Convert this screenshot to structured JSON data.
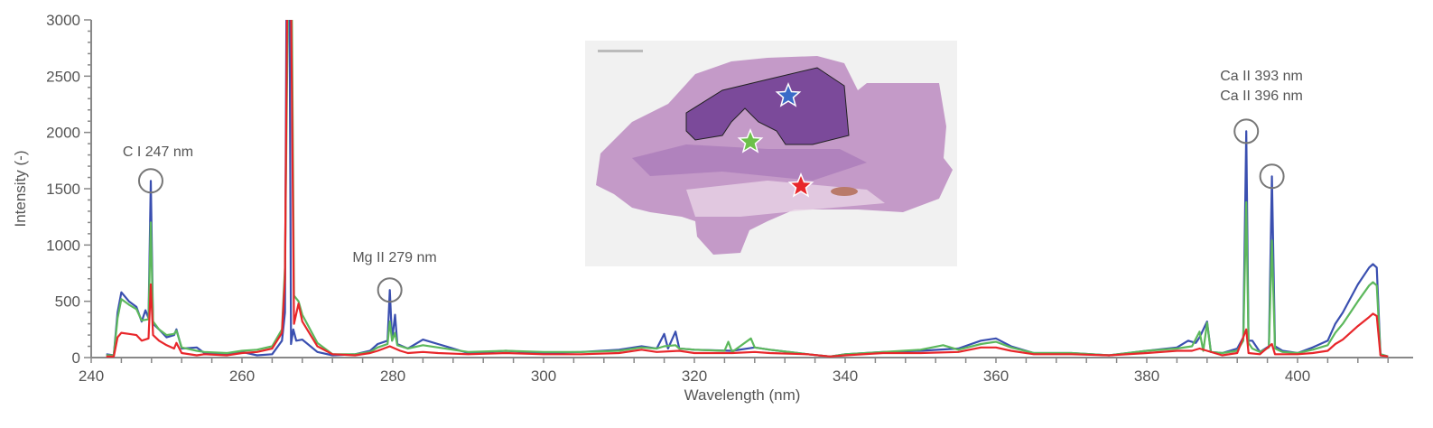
{
  "chart_data": {
    "type": "line",
    "title": "",
    "xlabel": "Wavelength (nm)",
    "ylabel": "Intensity (-)",
    "xlim": [
      240,
      415
    ],
    "ylim": [
      0,
      3000
    ],
    "x_ticks": [
      240,
      260,
      280,
      300,
      320,
      340,
      360,
      380,
      400
    ],
    "x_tick_labels": [
      "240",
      "260",
      "280",
      "300",
      "320",
      "340",
      "360",
      "380",
      "400"
    ],
    "y_ticks": [
      0,
      500,
      1000,
      1500,
      2000,
      2500,
      3000
    ],
    "y_tick_labels": [
      "0",
      "500",
      "1000",
      "1500",
      "2000",
      "2500",
      "3000"
    ],
    "grid": false,
    "legend": "none",
    "series": [
      {
        "color": "#3a4fb0",
        "points": [
          [
            242,
            30
          ],
          [
            243,
            20
          ],
          [
            243.5,
            400
          ],
          [
            244,
            580
          ],
          [
            245,
            500
          ],
          [
            246,
            450
          ],
          [
            246.7,
            320
          ],
          [
            247.2,
            420
          ],
          [
            247.6,
            350
          ],
          [
            247.9,
            1570
          ],
          [
            248.2,
            300
          ],
          [
            249,
            250
          ],
          [
            250,
            180
          ],
          [
            251,
            200
          ],
          [
            251.3,
            250
          ],
          [
            252,
            80
          ],
          [
            254,
            90
          ],
          [
            255,
            40
          ],
          [
            258,
            30
          ],
          [
            260,
            50
          ],
          [
            262,
            20
          ],
          [
            264,
            30
          ],
          [
            265.3,
            150
          ],
          [
            265.7,
            400
          ],
          [
            265.9,
            3200
          ],
          [
            266.3,
            3200
          ],
          [
            266.5,
            120
          ],
          [
            266.8,
            250
          ],
          [
            267.2,
            150
          ],
          [
            268,
            160
          ],
          [
            270,
            50
          ],
          [
            272,
            20
          ],
          [
            275,
            30
          ],
          [
            277,
            60
          ],
          [
            278,
            120
          ],
          [
            279.3,
            150
          ],
          [
            279.6,
            600
          ],
          [
            279.9,
            150
          ],
          [
            280.3,
            380
          ],
          [
            280.6,
            120
          ],
          [
            282,
            80
          ],
          [
            284,
            160
          ],
          [
            286,
            120
          ],
          [
            290,
            40
          ],
          [
            295,
            60
          ],
          [
            300,
            40
          ],
          [
            305,
            50
          ],
          [
            310,
            70
          ],
          [
            313,
            100
          ],
          [
            315,
            80
          ],
          [
            316,
            210
          ],
          [
            316.5,
            80
          ],
          [
            317.5,
            230
          ],
          [
            318,
            80
          ],
          [
            320,
            70
          ],
          [
            325,
            60
          ],
          [
            328,
            90
          ],
          [
            330,
            70
          ],
          [
            335,
            30
          ],
          [
            338,
            10
          ],
          [
            340,
            30
          ],
          [
            345,
            50
          ],
          [
            350,
            60
          ],
          [
            355,
            80
          ],
          [
            358,
            150
          ],
          [
            360,
            170
          ],
          [
            362,
            100
          ],
          [
            365,
            40
          ],
          [
            370,
            40
          ],
          [
            375,
            20
          ],
          [
            380,
            60
          ],
          [
            384,
            90
          ],
          [
            385.5,
            150
          ],
          [
            386.5,
            130
          ],
          [
            387,
            180
          ],
          [
            388,
            320
          ],
          [
            388.5,
            50
          ],
          [
            390,
            40
          ],
          [
            392,
            80
          ],
          [
            392.8,
            180
          ],
          [
            393.2,
            2010
          ],
          [
            393.5,
            150
          ],
          [
            394,
            150
          ],
          [
            395,
            50
          ],
          [
            396.2,
            100
          ],
          [
            396.6,
            1610
          ],
          [
            397,
            100
          ],
          [
            398,
            60
          ],
          [
            400,
            40
          ],
          [
            402,
            90
          ],
          [
            404,
            150
          ],
          [
            405,
            300
          ],
          [
            406,
            400
          ],
          [
            408,
            650
          ],
          [
            409.5,
            800
          ],
          [
            410,
            830
          ],
          [
            410.5,
            800
          ],
          [
            411,
            30
          ],
          [
            412,
            10
          ]
        ]
      },
      {
        "color": "#5cb85c",
        "points": [
          [
            242,
            20
          ],
          [
            243,
            20
          ],
          [
            243.5,
            350
          ],
          [
            244,
            520
          ],
          [
            245,
            470
          ],
          [
            246,
            430
          ],
          [
            246.7,
            330
          ],
          [
            247.6,
            340
          ],
          [
            247.9,
            1200
          ],
          [
            248.2,
            320
          ],
          [
            249,
            250
          ],
          [
            250,
            200
          ],
          [
            251,
            210
          ],
          [
            251.3,
            240
          ],
          [
            252,
            90
          ],
          [
            254,
            60
          ],
          [
            255,
            50
          ],
          [
            258,
            40
          ],
          [
            260,
            60
          ],
          [
            262,
            70
          ],
          [
            264,
            100
          ],
          [
            265.3,
            250
          ],
          [
            265.7,
            800
          ],
          [
            266.1,
            3200
          ],
          [
            266.6,
            3200
          ],
          [
            266.9,
            550
          ],
          [
            267.5,
            500
          ],
          [
            268,
            380
          ],
          [
            270,
            130
          ],
          [
            272,
            30
          ],
          [
            275,
            30
          ],
          [
            277,
            50
          ],
          [
            278,
            90
          ],
          [
            279.3,
            120
          ],
          [
            279.6,
            320
          ],
          [
            279.9,
            150
          ],
          [
            280.3,
            220
          ],
          [
            280.6,
            110
          ],
          [
            282,
            80
          ],
          [
            284,
            110
          ],
          [
            286,
            90
          ],
          [
            290,
            50
          ],
          [
            295,
            60
          ],
          [
            300,
            50
          ],
          [
            305,
            50
          ],
          [
            310,
            60
          ],
          [
            313,
            90
          ],
          [
            315,
            80
          ],
          [
            316,
            100
          ],
          [
            317.5,
            110
          ],
          [
            318,
            80
          ],
          [
            320,
            70
          ],
          [
            324,
            60
          ],
          [
            324.5,
            140
          ],
          [
            325,
            50
          ],
          [
            327.5,
            170
          ],
          [
            328,
            90
          ],
          [
            330,
            70
          ],
          [
            335,
            30
          ],
          [
            338,
            10
          ],
          [
            340,
            30
          ],
          [
            345,
            50
          ],
          [
            350,
            70
          ],
          [
            353,
            110
          ],
          [
            355,
            70
          ],
          [
            358,
            120
          ],
          [
            360,
            140
          ],
          [
            362,
            90
          ],
          [
            365,
            40
          ],
          [
            370,
            40
          ],
          [
            375,
            20
          ],
          [
            380,
            60
          ],
          [
            384,
            80
          ],
          [
            386,
            100
          ],
          [
            387,
            230
          ],
          [
            387.5,
            60
          ],
          [
            388,
            310
          ],
          [
            388.5,
            50
          ],
          [
            390,
            40
          ],
          [
            392,
            60
          ],
          [
            392.8,
            150
          ],
          [
            393.2,
            1380
          ],
          [
            393.5,
            130
          ],
          [
            394,
            80
          ],
          [
            395,
            50
          ],
          [
            396.2,
            90
          ],
          [
            396.6,
            1040
          ],
          [
            397,
            80
          ],
          [
            398,
            50
          ],
          [
            400,
            40
          ],
          [
            402,
            70
          ],
          [
            404,
            110
          ],
          [
            405,
            220
          ],
          [
            406,
            300
          ],
          [
            408,
            500
          ],
          [
            409.5,
            640
          ],
          [
            410,
            670
          ],
          [
            410.5,
            640
          ],
          [
            411,
            30
          ],
          [
            412,
            10
          ]
        ]
      },
      {
        "color": "#e8262a",
        "points": [
          [
            242,
            10
          ],
          [
            243,
            10
          ],
          [
            243.5,
            180
          ],
          [
            244,
            220
          ],
          [
            245,
            210
          ],
          [
            246,
            200
          ],
          [
            246.7,
            150
          ],
          [
            247.6,
            170
          ],
          [
            247.9,
            650
          ],
          [
            248.2,
            200
          ],
          [
            249,
            150
          ],
          [
            250,
            110
          ],
          [
            251,
            80
          ],
          [
            251.3,
            130
          ],
          [
            252,
            40
          ],
          [
            254,
            20
          ],
          [
            255,
            30
          ],
          [
            258,
            20
          ],
          [
            260,
            40
          ],
          [
            262,
            50
          ],
          [
            264,
            80
          ],
          [
            265.3,
            220
          ],
          [
            265.7,
            700
          ],
          [
            266.0,
            3200
          ],
          [
            266.5,
            3200
          ],
          [
            266.9,
            300
          ],
          [
            267.5,
            480
          ],
          [
            268,
            320
          ],
          [
            270,
            100
          ],
          [
            272,
            30
          ],
          [
            275,
            20
          ],
          [
            277,
            40
          ],
          [
            278,
            60
          ],
          [
            279.6,
            100
          ],
          [
            281,
            60
          ],
          [
            282,
            40
          ],
          [
            284,
            50
          ],
          [
            286,
            40
          ],
          [
            290,
            30
          ],
          [
            295,
            40
          ],
          [
            300,
            30
          ],
          [
            305,
            30
          ],
          [
            310,
            40
          ],
          [
            313,
            70
          ],
          [
            315,
            50
          ],
          [
            318,
            60
          ],
          [
            320,
            40
          ],
          [
            325,
            40
          ],
          [
            328,
            50
          ],
          [
            330,
            40
          ],
          [
            335,
            30
          ],
          [
            338,
            10
          ],
          [
            340,
            20
          ],
          [
            345,
            40
          ],
          [
            350,
            40
          ],
          [
            355,
            50
          ],
          [
            358,
            90
          ],
          [
            360,
            90
          ],
          [
            362,
            60
          ],
          [
            365,
            30
          ],
          [
            370,
            30
          ],
          [
            375,
            20
          ],
          [
            380,
            40
          ],
          [
            384,
            60
          ],
          [
            386,
            60
          ],
          [
            387,
            80
          ],
          [
            388,
            60
          ],
          [
            390,
            20
          ],
          [
            392,
            40
          ],
          [
            393.2,
            250
          ],
          [
            393.5,
            40
          ],
          [
            395,
            30
          ],
          [
            396.6,
            120
          ],
          [
            397,
            30
          ],
          [
            400,
            30
          ],
          [
            402,
            40
          ],
          [
            404,
            60
          ],
          [
            405,
            120
          ],
          [
            406,
            160
          ],
          [
            408,
            280
          ],
          [
            409.5,
            360
          ],
          [
            410,
            390
          ],
          [
            410.5,
            370
          ],
          [
            411,
            20
          ],
          [
            412,
            10
          ]
        ]
      }
    ],
    "annotations": [
      {
        "text": "C I 247 nm",
        "x": 247.9,
        "y": 1570
      },
      {
        "text": "Mg II 279 nm",
        "x": 279.6,
        "y": 600
      },
      {
        "text": "Ca II 393 nm",
        "x": 393.2,
        "y": 2010
      },
      {
        "text": "Ca II 396 nm",
        "x": 396.6,
        "y": 1610
      }
    ]
  },
  "inset": {
    "stars": [
      "#3a6bc8",
      "#6cc04a",
      "#e8262a"
    ]
  }
}
